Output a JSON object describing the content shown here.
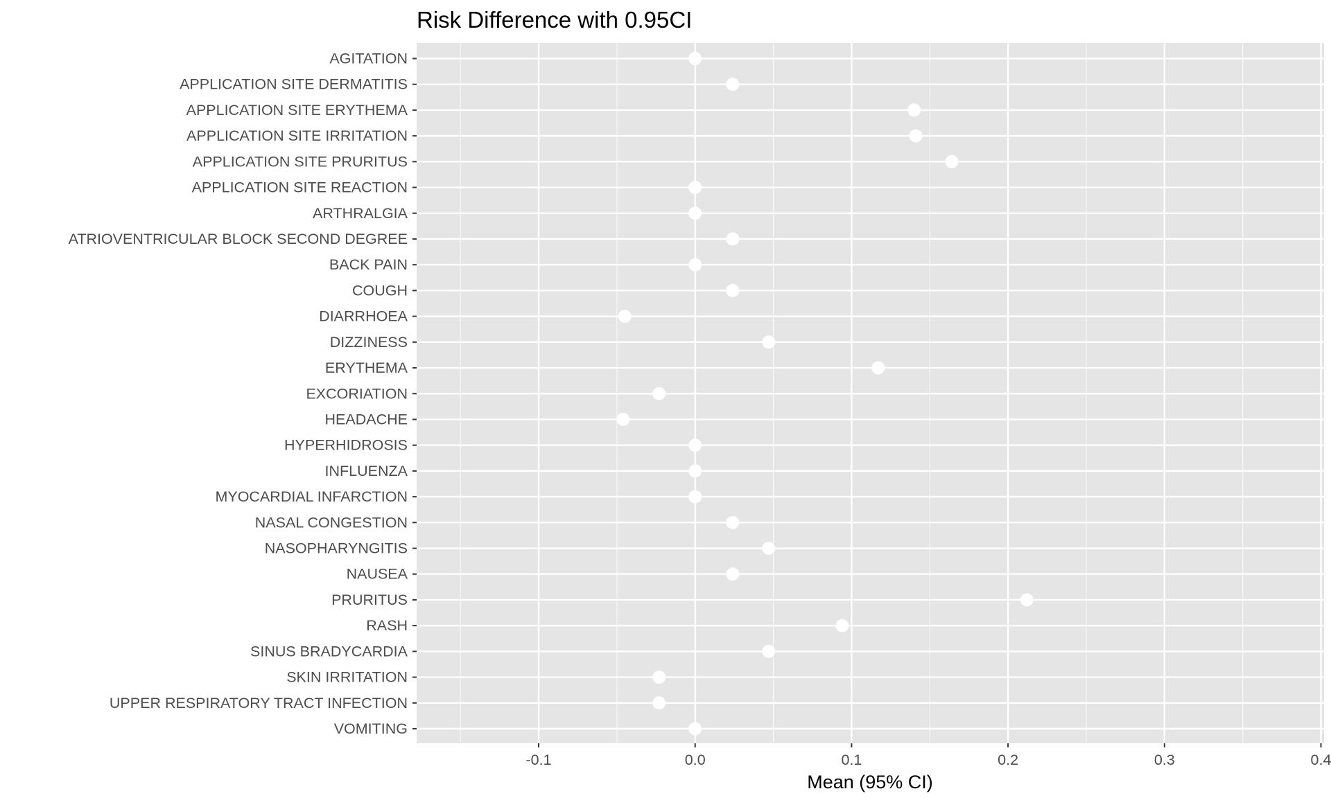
{
  "chart_data": {
    "type": "scatter",
    "title": "Risk Difference with 0.95CI",
    "xlabel": "Mean (95% CI)",
    "ylabel": "",
    "xlim": [
      -0.178,
      0.402
    ],
    "x_ticks": [
      -0.1,
      0.0,
      0.1,
      0.2,
      0.3,
      0.4
    ],
    "x_tick_labels": [
      "-0.1",
      "0.0",
      "0.1",
      "0.2",
      "0.3",
      "0.4"
    ],
    "x_minor_ticks": [
      -0.15,
      -0.05,
      0.05,
      0.15,
      0.25,
      0.35
    ],
    "grid": true,
    "legend": "none",
    "colors": {
      "panel_background": "#e5e5e5",
      "grid_line": "#ffffff",
      "point": "#ffffff"
    },
    "categories": [
      "AGITATION",
      "APPLICATION SITE DERMATITIS",
      "APPLICATION SITE ERYTHEMA",
      "APPLICATION SITE IRRITATION",
      "APPLICATION SITE PRURITUS",
      "APPLICATION SITE REACTION",
      "ARTHRALGIA",
      "ATRIOVENTRICULAR BLOCK SECOND DEGREE",
      "BACK PAIN",
      "COUGH",
      "DIARRHOEA",
      "DIZZINESS",
      "ERYTHEMA",
      "EXCORIATION",
      "HEADACHE",
      "HYPERHIDROSIS",
      "INFLUENZA",
      "MYOCARDIAL INFARCTION",
      "NASAL CONGESTION",
      "NASOPHARYNGITIS",
      "NAUSEA",
      "PRURITUS",
      "RASH",
      "SINUS BRADYCARDIA",
      "SKIN IRRITATION",
      "UPPER RESPIRATORY TRACT INFECTION",
      "VOMITING"
    ],
    "values": [
      0.0,
      0.024,
      0.14,
      0.141,
      0.164,
      0.0,
      0.0,
      0.024,
      0.0,
      0.024,
      -0.045,
      0.047,
      0.117,
      -0.023,
      -0.046,
      0.0,
      0.0,
      0.0,
      0.024,
      0.047,
      0.024,
      0.212,
      0.094,
      0.047,
      -0.023,
      -0.023,
      0.0
    ]
  }
}
